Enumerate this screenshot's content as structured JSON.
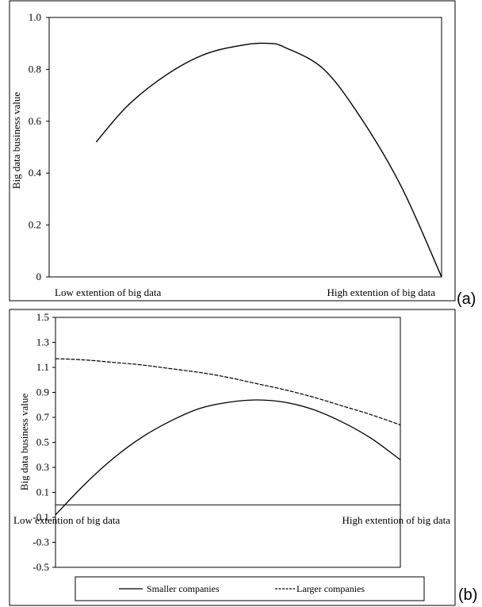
{
  "chart_data": [
    {
      "type": "line",
      "panel_label": "(a)",
      "title": "",
      "ylabel": "Big data business value",
      "xlabel": "",
      "x_tick_labels": [
        "Low extention of big data",
        "High extention of big data"
      ],
      "y_tick_labels": [
        "0",
        "0.2",
        "0.4",
        "0.6",
        "0.8",
        "1.0"
      ],
      "ylim": [
        0,
        1.0
      ],
      "xlim": [
        0,
        1
      ],
      "grid": false,
      "series": [
        {
          "style": "solid",
          "x": [
            0.12,
            0.2,
            0.3,
            0.4,
            0.5,
            0.56,
            0.6,
            0.7,
            0.8,
            0.9,
            1.0
          ],
          "y": [
            0.52,
            0.66,
            0.78,
            0.86,
            0.895,
            0.9,
            0.885,
            0.8,
            0.6,
            0.34,
            0.0
          ]
        }
      ]
    },
    {
      "type": "line",
      "panel_label": "(b)",
      "title": "",
      "ylabel": "Big data business value",
      "xlabel": "",
      "x_tick_labels": [
        "Low extention of big data",
        "High extention of big data"
      ],
      "y_tick_labels": [
        "1.5",
        "1.3",
        "1.1",
        "0.9",
        "0.7",
        "0.5",
        "0.3",
        "0.1",
        "-0.1",
        "-0.3",
        "-0.5"
      ],
      "ylim": [
        -0.5,
        1.5
      ],
      "xlim": [
        0,
        12
      ],
      "grid": false,
      "legend": "bottom",
      "series": [
        {
          "name": "Smaller companies",
          "style": "solid",
          "x": [
            0,
            1,
            2,
            3,
            4,
            5,
            6,
            7,
            8,
            9,
            10,
            11,
            12
          ],
          "y": [
            -0.08,
            0.16,
            0.37,
            0.54,
            0.67,
            0.77,
            0.82,
            0.84,
            0.82,
            0.76,
            0.66,
            0.53,
            0.36
          ]
        },
        {
          "name": "Larger companies",
          "style": "dashed",
          "x": [
            0,
            1,
            2,
            3,
            4,
            5,
            6,
            7,
            8,
            9,
            10,
            11,
            12
          ],
          "y": [
            1.17,
            1.16,
            1.14,
            1.12,
            1.09,
            1.06,
            1.02,
            0.97,
            0.92,
            0.86,
            0.79,
            0.72,
            0.64
          ]
        }
      ]
    }
  ]
}
